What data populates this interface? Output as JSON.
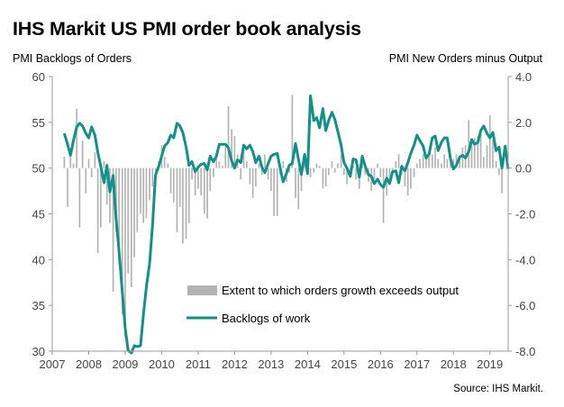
{
  "header": {
    "title": "IHS Markit US PMI order book analysis",
    "left_axis_title": "PMI Backlogs of Orders",
    "right_axis_title": "PMI New Orders minus Output",
    "source": "Source: IHS Markit."
  },
  "colors": {
    "line": "#12918a",
    "bars": "#b3b3b3",
    "axis": "#999999"
  },
  "chart_data": {
    "type": "bar+line",
    "title": "IHS Markit US PMI order book analysis",
    "x_ticks": [
      "2007",
      "2008",
      "2009",
      "2010",
      "2011",
      "2012",
      "2013",
      "2014",
      "2015",
      "2016",
      "2017",
      "2018",
      "2019"
    ],
    "xlim": [
      2007.0,
      2019.5
    ],
    "y_left": {
      "label": "PMI Backlogs of Orders",
      "lim": [
        30,
        60
      ],
      "ticks": [
        "30",
        "35",
        "40",
        "45",
        "50",
        "55",
        "60"
      ]
    },
    "y_right": {
      "label": "PMI New Orders minus Output",
      "lim": [
        -8,
        4
      ],
      "ticks": [
        "-8.0",
        "-6.0",
        "-4.0",
        "-2.0",
        "0.0",
        "2.0",
        "4.0"
      ]
    },
    "legend": {
      "position": "bottom-right",
      "bars_label": "Extent to which orders growth exceeds output",
      "line_label": "Backlogs of work"
    },
    "series": [
      {
        "name": "Extent to which orders growth exceeds output",
        "axis": "right",
        "kind": "bar",
        "points": [
          [
            2007.33,
            0.5
          ],
          [
            2007.42,
            -1.7
          ],
          [
            2007.5,
            0.8
          ],
          [
            2007.58,
            0.2
          ],
          [
            2007.67,
            2.6
          ],
          [
            2007.75,
            -2.6
          ],
          [
            2007.83,
            1.2
          ],
          [
            2007.92,
            -1.1
          ],
          [
            2008.0,
            0.4
          ],
          [
            2008.08,
            -0.4
          ],
          [
            2008.17,
            0.7
          ],
          [
            2008.25,
            -3.7
          ],
          [
            2008.33,
            -2.6
          ],
          [
            2008.42,
            0.3
          ],
          [
            2008.5,
            -1.6
          ],
          [
            2008.58,
            -2.4
          ],
          [
            2008.67,
            -5.4
          ],
          [
            2008.75,
            -2.8
          ],
          [
            2008.83,
            -4.2
          ],
          [
            2008.92,
            -6.4
          ],
          [
            2009.0,
            -7.4
          ],
          [
            2009.08,
            -4.6
          ],
          [
            2009.17,
            -5.2
          ],
          [
            2009.25,
            -3.9
          ],
          [
            2009.33,
            -2.8
          ],
          [
            2009.42,
            -2.0
          ],
          [
            2009.5,
            -2.4
          ],
          [
            2009.58,
            -2.2
          ],
          [
            2009.67,
            -1.4
          ],
          [
            2009.75,
            -0.8
          ],
          [
            2009.83,
            -0.3
          ],
          [
            2009.92,
            0.3
          ],
          [
            2010.0,
            1.0
          ],
          [
            2010.08,
            0.5
          ],
          [
            2010.17,
            0.2
          ],
          [
            2010.25,
            -1.1
          ],
          [
            2010.33,
            -1.5
          ],
          [
            2010.42,
            -2.8
          ],
          [
            2010.5,
            -1.7
          ],
          [
            2010.58,
            -3.3
          ],
          [
            2010.67,
            -3.1
          ],
          [
            2010.75,
            -2.4
          ],
          [
            2010.83,
            -0.5
          ],
          [
            2010.92,
            -1.2
          ],
          [
            2011.0,
            -0.9
          ],
          [
            2011.08,
            -1.2
          ],
          [
            2011.17,
            -2.0
          ],
          [
            2011.25,
            -2.2
          ],
          [
            2011.33,
            -1.0
          ],
          [
            2011.42,
            -0.4
          ],
          [
            2011.5,
            0.5
          ],
          [
            2011.58,
            0.3
          ],
          [
            2011.67,
            0.1
          ],
          [
            2011.75,
            1.0
          ],
          [
            2011.83,
            2.7
          ],
          [
            2011.92,
            1.7
          ],
          [
            2012.0,
            1.4
          ],
          [
            2012.08,
            0.6
          ],
          [
            2012.17,
            -0.5
          ],
          [
            2012.25,
            0.8
          ],
          [
            2012.33,
            0.3
          ],
          [
            2012.42,
            -0.7
          ],
          [
            2012.5,
            -1.3
          ],
          [
            2012.58,
            -0.8
          ],
          [
            2012.67,
            0.2
          ],
          [
            2012.75,
            -0.3
          ],
          [
            2012.83,
            0.6
          ],
          [
            2012.92,
            -0.5
          ],
          [
            2013.0,
            -1.0
          ],
          [
            2013.08,
            -2.1
          ],
          [
            2013.17,
            -2.1
          ],
          [
            2013.25,
            -0.3
          ],
          [
            2013.33,
            0.3
          ],
          [
            2013.42,
            -0.6
          ],
          [
            2013.5,
            -0.2
          ],
          [
            2013.58,
            3.2
          ],
          [
            2013.67,
            -1.3
          ],
          [
            2013.75,
            -1.8
          ],
          [
            2013.83,
            -1.0
          ],
          [
            2013.92,
            0.5
          ],
          [
            2014.0,
            -0.3
          ],
          [
            2014.08,
            -0.4
          ],
          [
            2014.17,
            -0.2
          ],
          [
            2014.25,
            0.2
          ],
          [
            2014.33,
            0.1
          ],
          [
            2014.42,
            -0.9
          ],
          [
            2014.5,
            -0.8
          ],
          [
            2014.58,
            -0.3
          ],
          [
            2014.67,
            0.3
          ],
          [
            2014.75,
            -0.2
          ],
          [
            2014.83,
            0.2
          ],
          [
            2014.92,
            0.6
          ],
          [
            2015.0,
            -0.3
          ],
          [
            2015.08,
            -0.7
          ],
          [
            2015.17,
            -0.3
          ],
          [
            2015.25,
            0.1
          ],
          [
            2015.33,
            -0.5
          ],
          [
            2015.42,
            -0.9
          ],
          [
            2015.5,
            0.2
          ],
          [
            2015.58,
            -0.3
          ],
          [
            2015.67,
            -0.6
          ],
          [
            2015.75,
            -1.0
          ],
          [
            2015.83,
            -0.5
          ],
          [
            2015.92,
            0.2
          ],
          [
            2016.0,
            -0.4
          ],
          [
            2016.08,
            -2.4
          ],
          [
            2016.17,
            -1.2
          ],
          [
            2016.25,
            -0.6
          ],
          [
            2016.33,
            -0.2
          ],
          [
            2016.42,
            0.3
          ],
          [
            2016.5,
            0.6
          ],
          [
            2016.58,
            -0.3
          ],
          [
            2016.67,
            -0.8
          ],
          [
            2016.75,
            -1.2
          ],
          [
            2016.83,
            -0.9
          ],
          [
            2016.92,
            -0.4
          ],
          [
            2017.0,
            0.2
          ],
          [
            2017.08,
            0.4
          ],
          [
            2017.17,
            0.6
          ],
          [
            2017.25,
            0.4
          ],
          [
            2017.33,
            0.5
          ],
          [
            2017.42,
            0.6
          ],
          [
            2017.5,
            0.9
          ],
          [
            2017.58,
            0.4
          ],
          [
            2017.67,
            0.2
          ],
          [
            2017.75,
            0.6
          ],
          [
            2017.83,
            0.4
          ],
          [
            2017.92,
            0.5
          ],
          [
            2018.0,
            0.4
          ],
          [
            2018.08,
            0.6
          ],
          [
            2018.17,
            0.5
          ],
          [
            2018.25,
            0.9
          ],
          [
            2018.33,
            1.0
          ],
          [
            2018.42,
            2.1
          ],
          [
            2018.5,
            1.1
          ],
          [
            2018.58,
            1.3
          ],
          [
            2018.67,
            1.4
          ],
          [
            2018.75,
            1.5
          ],
          [
            2018.83,
            0.5
          ],
          [
            2018.92,
            1.0
          ],
          [
            2019.0,
            2.3
          ],
          [
            2019.08,
            1.2
          ],
          [
            2019.17,
            0.3
          ],
          [
            2019.25,
            -0.3
          ],
          [
            2019.33,
            -1.1
          ]
        ]
      },
      {
        "name": "Backlogs of work",
        "axis": "left",
        "kind": "line",
        "points": [
          [
            2007.33,
            53.8
          ],
          [
            2007.42,
            52.6
          ],
          [
            2007.5,
            51.4
          ],
          [
            2007.58,
            53.0
          ],
          [
            2007.67,
            54.5
          ],
          [
            2007.75,
            54.9
          ],
          [
            2007.83,
            54.6
          ],
          [
            2007.92,
            53.8
          ],
          [
            2008.0,
            53.3
          ],
          [
            2008.08,
            54.5
          ],
          [
            2008.17,
            53.6
          ],
          [
            2008.25,
            51.7
          ],
          [
            2008.33,
            50.2
          ],
          [
            2008.42,
            48.4
          ],
          [
            2008.5,
            50.3
          ],
          [
            2008.58,
            47.4
          ],
          [
            2008.67,
            49.2
          ],
          [
            2008.75,
            44.5
          ],
          [
            2008.83,
            41.0
          ],
          [
            2008.92,
            36.5
          ],
          [
            2009.0,
            32.5
          ],
          [
            2009.08,
            30.1
          ],
          [
            2009.17,
            29.8
          ],
          [
            2009.25,
            30.6
          ],
          [
            2009.33,
            30.5
          ],
          [
            2009.42,
            30.6
          ],
          [
            2009.5,
            34.0
          ],
          [
            2009.58,
            37.0
          ],
          [
            2009.67,
            39.6
          ],
          [
            2009.75,
            43.8
          ],
          [
            2009.83,
            49.2
          ],
          [
            2009.92,
            50.2
          ],
          [
            2010.0,
            51.3
          ],
          [
            2010.08,
            52.4
          ],
          [
            2010.17,
            52.8
          ],
          [
            2010.25,
            53.6
          ],
          [
            2010.33,
            53.3
          ],
          [
            2010.42,
            54.9
          ],
          [
            2010.5,
            54.6
          ],
          [
            2010.58,
            53.9
          ],
          [
            2010.67,
            52.3
          ],
          [
            2010.75,
            50.3
          ],
          [
            2010.83,
            50.7
          ],
          [
            2010.92,
            49.6
          ],
          [
            2011.0,
            50.1
          ],
          [
            2011.08,
            50.4
          ],
          [
            2011.17,
            50.5
          ],
          [
            2011.25,
            49.8
          ],
          [
            2011.33,
            51.3
          ],
          [
            2011.42,
            50.7
          ],
          [
            2011.5,
            51.3
          ],
          [
            2011.58,
            52.6
          ],
          [
            2011.67,
            52.6
          ],
          [
            2011.75,
            52.6
          ],
          [
            2011.83,
            52.2
          ],
          [
            2011.92,
            50.8
          ],
          [
            2012.0,
            50.0
          ],
          [
            2012.08,
            50.9
          ],
          [
            2012.17,
            50.6
          ],
          [
            2012.25,
            52.5
          ],
          [
            2012.33,
            52.1
          ],
          [
            2012.42,
            52.5
          ],
          [
            2012.5,
            51.8
          ],
          [
            2012.58,
            50.6
          ],
          [
            2012.67,
            51.3
          ],
          [
            2012.75,
            50.1
          ],
          [
            2012.83,
            49.5
          ],
          [
            2012.92,
            50.5
          ],
          [
            2013.0,
            51.3
          ],
          [
            2013.08,
            51.5
          ],
          [
            2013.17,
            51.6
          ],
          [
            2013.25,
            50.0
          ],
          [
            2013.33,
            48.5
          ],
          [
            2013.42,
            49.4
          ],
          [
            2013.5,
            50.3
          ],
          [
            2013.58,
            50.5
          ],
          [
            2013.67,
            52.7
          ],
          [
            2013.75,
            51.0
          ],
          [
            2013.83,
            49.3
          ],
          [
            2013.92,
            51.5
          ],
          [
            2014.0,
            49.4
          ],
          [
            2014.08,
            57.9
          ],
          [
            2014.17,
            55.2
          ],
          [
            2014.25,
            55.5
          ],
          [
            2014.33,
            54.4
          ],
          [
            2014.42,
            56.5
          ],
          [
            2014.5,
            54.1
          ],
          [
            2014.58,
            55.2
          ],
          [
            2014.67,
            56.1
          ],
          [
            2014.75,
            55.3
          ],
          [
            2014.83,
            54.0
          ],
          [
            2014.92,
            52.5
          ],
          [
            2015.0,
            50.6
          ],
          [
            2015.08,
            50.0
          ],
          [
            2015.17,
            49.1
          ],
          [
            2015.25,
            51.0
          ],
          [
            2015.33,
            50.9
          ],
          [
            2015.42,
            49.0
          ],
          [
            2015.5,
            51.3
          ],
          [
            2015.58,
            50.2
          ],
          [
            2015.67,
            49.3
          ],
          [
            2015.75,
            49.1
          ],
          [
            2015.83,
            48.3
          ],
          [
            2015.92,
            48.8
          ],
          [
            2016.0,
            48.2
          ],
          [
            2016.08,
            47.9
          ],
          [
            2016.17,
            48.9
          ],
          [
            2016.25,
            48.3
          ],
          [
            2016.33,
            49.6
          ],
          [
            2016.42,
            49.7
          ],
          [
            2016.5,
            48.4
          ],
          [
            2016.58,
            50.2
          ],
          [
            2016.67,
            49.7
          ],
          [
            2016.75,
            50.6
          ],
          [
            2016.83,
            51.6
          ],
          [
            2016.92,
            52.5
          ],
          [
            2017.0,
            53.6
          ],
          [
            2017.08,
            53.0
          ],
          [
            2017.17,
            52.4
          ],
          [
            2017.25,
            51.1
          ],
          [
            2017.33,
            51.5
          ],
          [
            2017.42,
            53.3
          ],
          [
            2017.5,
            53.5
          ],
          [
            2017.58,
            51.9
          ],
          [
            2017.67,
            52.8
          ],
          [
            2017.75,
            53.3
          ],
          [
            2017.83,
            53.3
          ],
          [
            2017.92,
            51.0
          ],
          [
            2018.0,
            49.9
          ],
          [
            2018.08,
            50.3
          ],
          [
            2018.17,
            51.2
          ],
          [
            2018.25,
            51.4
          ],
          [
            2018.33,
            51.1
          ],
          [
            2018.42,
            51.8
          ],
          [
            2018.5,
            53.1
          ],
          [
            2018.58,
            52.6
          ],
          [
            2018.67,
            52.8
          ],
          [
            2018.75,
            54.1
          ],
          [
            2018.83,
            54.6
          ],
          [
            2018.92,
            53.8
          ],
          [
            2019.0,
            53.3
          ],
          [
            2019.08,
            53.9
          ],
          [
            2019.17,
            51.9
          ],
          [
            2019.25,
            52.3
          ],
          [
            2019.33,
            50.0
          ],
          [
            2019.42,
            52.4
          ],
          [
            2019.5,
            49.9
          ]
        ]
      }
    ]
  }
}
